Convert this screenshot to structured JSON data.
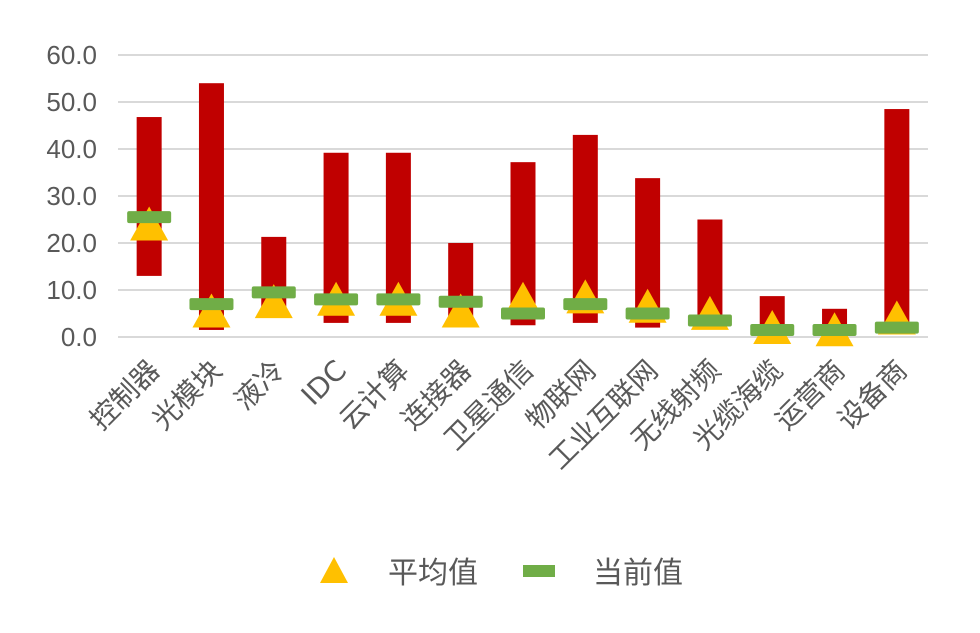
{
  "chart_data": {
    "type": "bar",
    "title": "",
    "xlabel": "",
    "ylabel": "",
    "ylim": [
      0,
      60
    ],
    "yticks": [
      "0.0",
      "10.0",
      "20.0",
      "30.0",
      "40.0",
      "50.0",
      "60.0"
    ],
    "grid": true,
    "categories": [
      "控制器",
      "光模块",
      "液冷",
      "IDC",
      "云计算",
      "连接器",
      "卫星通信",
      "物联网",
      "工业互联网",
      "无线射频",
      "光缆海缆",
      "运营商",
      "设备商"
    ],
    "range_bars": {
      "color": "#C00000",
      "low": [
        13.0,
        1.5,
        5.0,
        3.0,
        3.0,
        3.0,
        2.5,
        3.0,
        2.0,
        2.0,
        0.5,
        0.5,
        1.0
      ],
      "high": [
        46.8,
        54.0,
        21.3,
        39.2,
        39.2,
        20.0,
        37.2,
        43.0,
        33.8,
        25.0,
        8.7,
        6.0,
        48.5
      ]
    },
    "series": [
      {
        "name": "平均值",
        "marker": "triangle",
        "color": "#FFC000",
        "values": [
          23.5,
          5.0,
          7.0,
          7.5,
          7.5,
          5.0,
          7.5,
          8.0,
          6.0,
          4.5,
          1.5,
          1.0,
          3.5
        ]
      },
      {
        "name": "当前值",
        "marker": "dash",
        "color": "#70AD47",
        "values": [
          25.5,
          7.0,
          9.5,
          8.0,
          8.0,
          7.5,
          5.0,
          7.0,
          5.0,
          3.5,
          1.5,
          1.5,
          2.0
        ]
      }
    ],
    "legend": {
      "position": "bottom",
      "entries": [
        "平均值",
        "当前值"
      ]
    }
  }
}
